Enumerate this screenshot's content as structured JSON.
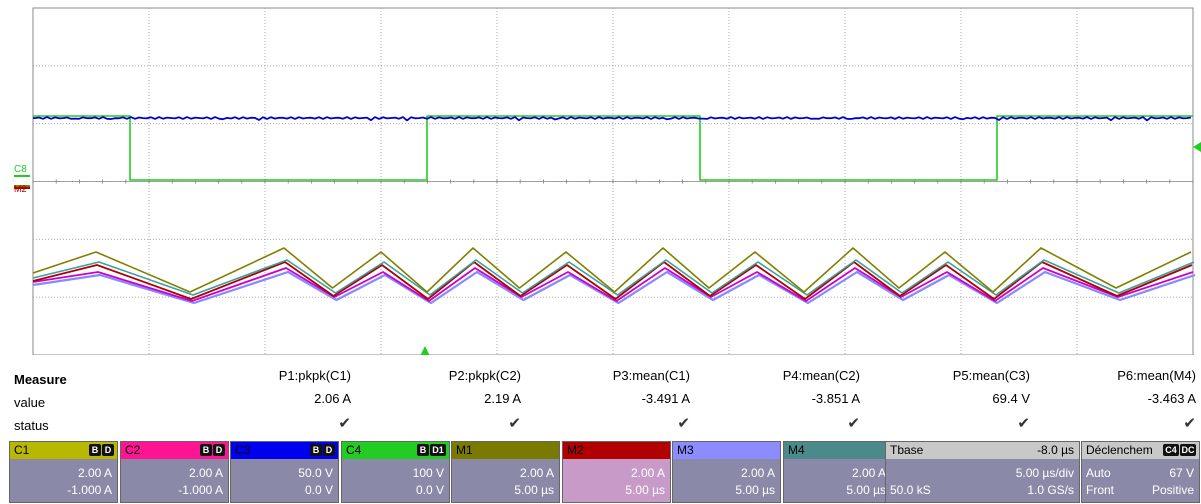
{
  "channel_markers": {
    "c8": "C8",
    "m2": "M2"
  },
  "measure": {
    "header": "Measure",
    "row_value": "value",
    "row_status": "status",
    "columns": [
      {
        "name": "P1:pkpk(C1)",
        "value": "2.06 A",
        "status": "✔"
      },
      {
        "name": "P2:pkpk(C2)",
        "value": "2.19 A",
        "status": "✔"
      },
      {
        "name": "P3:mean(C1)",
        "value": "-3.491 A",
        "status": "✔"
      },
      {
        "name": "P4:mean(C2)",
        "value": "-3.851 A",
        "status": "✔"
      },
      {
        "name": "P5:mean(C3)",
        "value": "69.4 V",
        "status": "✔"
      },
      {
        "name": "P6:mean(M4)",
        "value": "-3.463 A",
        "status": "✔"
      }
    ]
  },
  "controls": [
    {
      "name": "C1",
      "badges": [
        "B",
        "D"
      ],
      "line1": "2.00 A",
      "line2": "-1.000 A",
      "head_color": "#b8b800",
      "body_color": "#8a8aa8"
    },
    {
      "name": "C2",
      "badges": [
        "B",
        "D"
      ],
      "line1": "2.00 A",
      "line2": "-1.000 A",
      "head_color": "#ff1493",
      "body_color": "#8a8aa8"
    },
    {
      "name": "C3",
      "badges": [
        "B",
        "D"
      ],
      "line1": "50.0 V",
      "line2": "0.0 V",
      "head_color": "#0000ee",
      "body_color": "#8a8aa8"
    },
    {
      "name": "C4",
      "badges": [
        "B",
        "D1"
      ],
      "line1": "100 V",
      "line2": "0.0 V",
      "head_color": "#22cc22",
      "body_color": "#8a8aa8"
    },
    {
      "name": "M1",
      "badges": [],
      "line1": "2.00 A",
      "line2": "5.00 µs",
      "head_color": "#7a7a00",
      "body_color": "#8a8aa8"
    },
    {
      "name": "M2",
      "badges": [],
      "line1": "2.00 A",
      "line2": "5.00 µs",
      "head_color": "#b00000",
      "body_color": "#c89ac8"
    },
    {
      "name": "M3",
      "badges": [],
      "line1": "2.00 A",
      "line2": "5.00 µs",
      "head_color": "#8c8cff",
      "body_color": "#8a8aa8"
    },
    {
      "name": "M4",
      "badges": [],
      "line1": "2.00 A",
      "line2": "5.00 µs",
      "head_color": "#4a8a8a",
      "body_color": "#8a8aa8"
    }
  ],
  "timebase": {
    "title": "Tbase",
    "delay": "-8.0 µs",
    "per_div": "5.00 µs/div",
    "samples": "50.0 kS",
    "rate": "1.0 GS/s",
    "head_color": "#c8c8c8"
  },
  "trigger": {
    "title": "Déclenchem",
    "badges": [
      "C4",
      "DC"
    ],
    "mode": "Auto",
    "level": "67 V",
    "type": "Front",
    "slope": "Positive",
    "head_color": "#c8c8c8"
  },
  "colors": {
    "c1": "#808000",
    "c2": "#cc00cc",
    "c3": "#0000cc",
    "c4": "#22cc22",
    "m1": "#6b6b00",
    "m2": "#b00000",
    "m3": "#8888ff",
    "m4": "#3aa0a0"
  }
}
